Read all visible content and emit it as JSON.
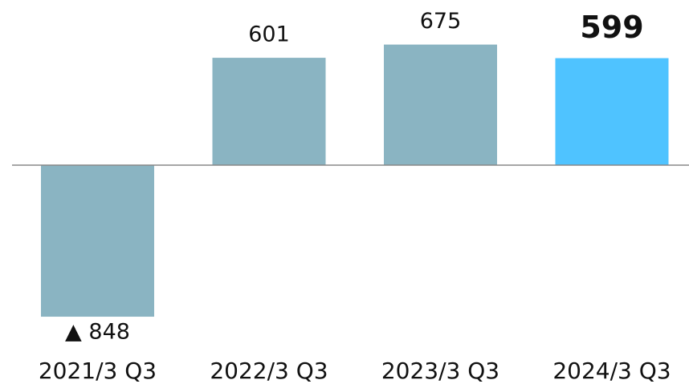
{
  "chart_data": {
    "type": "bar",
    "categories": [
      "2021/3 Q3",
      "2022/3 Q3",
      "2023/3 Q3",
      "2024/3 Q3"
    ],
    "values": [
      -848,
      601,
      675,
      599
    ],
    "value_labels": [
      "▲ 848",
      "601",
      "675",
      "599"
    ],
    "colors": [
      "#8ab4c2",
      "#8ab4c2",
      "#8ab4c2",
      "#4fc3ff"
    ],
    "ylim": [
      -960,
      745
    ]
  }
}
